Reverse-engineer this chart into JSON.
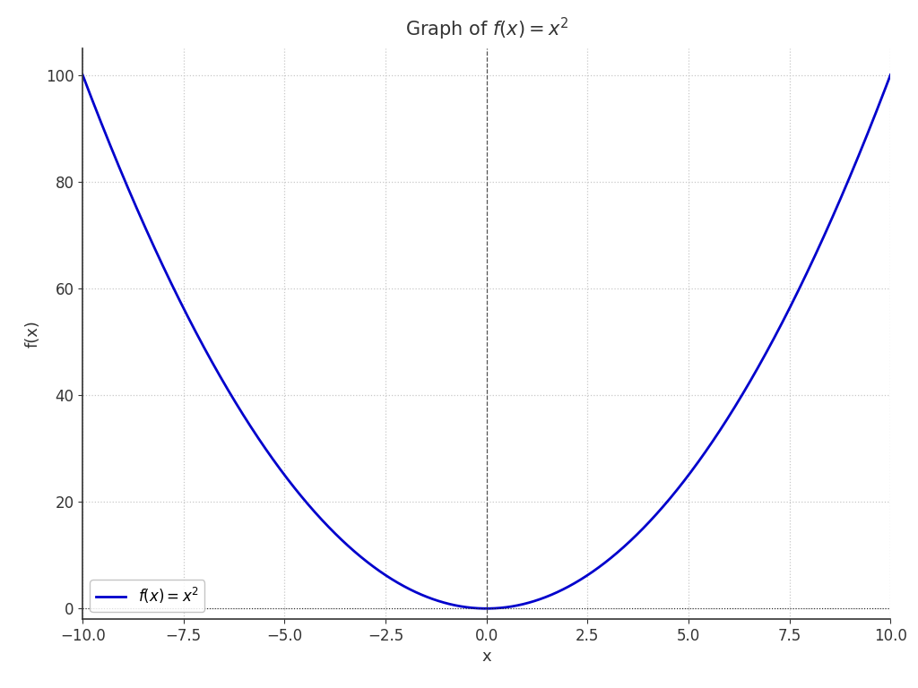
{
  "title": "Graph of $f(x) = x^2$",
  "xlabel": "x",
  "ylabel": "f(x)",
  "x_min": -10,
  "x_max": 10,
  "y_min": -2,
  "y_max": 105,
  "line_color": "#0000cc",
  "line_width": 2.0,
  "legend_label": "$f(x) = x^2$",
  "grid_color": "#c8c8c8",
  "grid_linestyle": ":",
  "hline_color": "#222222",
  "hline_style": ":",
  "vline_color": "#555555",
  "vline_style": "--",
  "background_color": "#ffffff",
  "title_fontsize": 15,
  "axis_label_fontsize": 13,
  "tick_fontsize": 12,
  "x_ticks": [
    -10.0,
    -7.5,
    -5.0,
    -2.5,
    0.0,
    2.5,
    5.0,
    7.5,
    10.0
  ],
  "y_ticks": [
    0,
    20,
    40,
    60,
    80,
    100
  ]
}
